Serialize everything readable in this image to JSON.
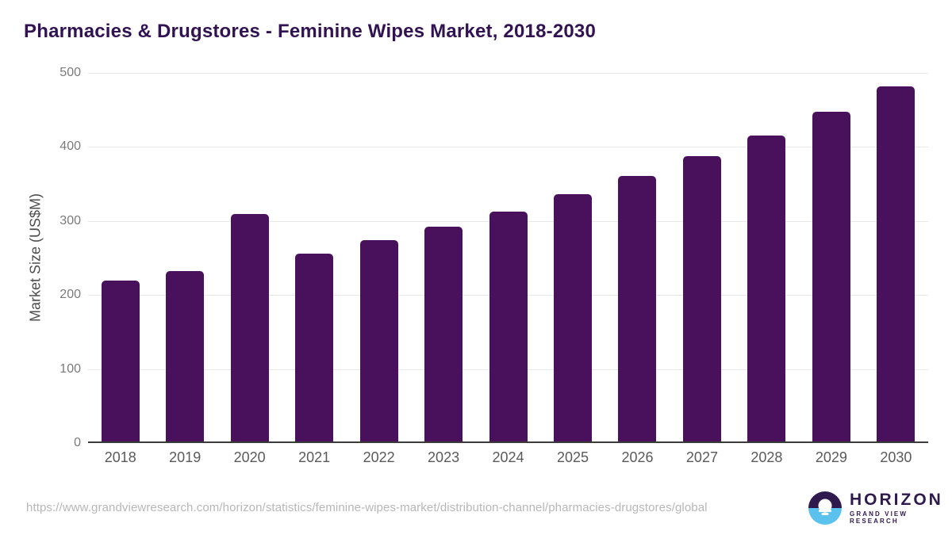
{
  "chart_data": {
    "type": "bar",
    "title": "Pharmacies & Drugstores - Feminine Wipes Market, 2018-2030",
    "categories": [
      "2018",
      "2019",
      "2020",
      "2021",
      "2022",
      "2023",
      "2024",
      "2025",
      "2026",
      "2027",
      "2028",
      "2029",
      "2030"
    ],
    "values": [
      217,
      230,
      307,
      254,
      272,
      290,
      311,
      334,
      359,
      385,
      413,
      445,
      480
    ],
    "xlabel": "",
    "ylabel": "Market Size (US$M)",
    "ylim": [
      0,
      500
    ],
    "yticks": [
      0,
      100,
      200,
      300,
      400,
      500
    ],
    "grid": "horizontal gridlines on",
    "legend": "none",
    "bar_color": "#49105c"
  },
  "colors": {
    "bar": "#49105c",
    "title": "#311352",
    "axis_line": "#3b3b3b",
    "gridline": "#e8e8e8",
    "y_tick_text": "#7a7a7a",
    "x_tick_text": "#5a5a5a",
    "url_text": "#b7b7b7",
    "logo_purple": "#2e1a4d",
    "logo_blue": "#5bc2ee"
  },
  "footer": {
    "source_url": "https://www.grandviewresearch.com/horizon/statistics/feminine-wipes-market/distribution-channel/pharmacies-drugstores/global",
    "logo": {
      "brand": "HORIZON",
      "sub_brand": "GRAND VIEW RESEARCH"
    }
  }
}
